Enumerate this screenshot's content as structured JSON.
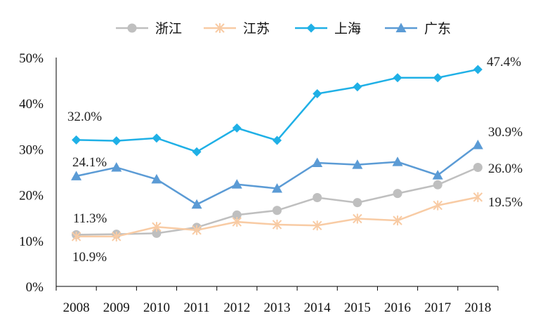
{
  "chart_data": {
    "type": "line",
    "categories": [
      "2008",
      "2009",
      "2010",
      "2011",
      "2012",
      "2013",
      "2014",
      "2015",
      "2016",
      "2017",
      "2018"
    ],
    "ylim": [
      0,
      50
    ],
    "y_ticks": [
      "0%",
      "10%",
      "20%",
      "30%",
      "40%",
      "50%"
    ],
    "grid": false,
    "legend_position": "top",
    "series": [
      {
        "name": "浙江",
        "color": "#bfbfbf",
        "marker": "circle",
        "values": [
          11.3,
          11.4,
          11.6,
          12.9,
          15.6,
          16.6,
          19.4,
          18.3,
          20.3,
          22.2,
          26.0
        ]
      },
      {
        "name": "江苏",
        "color": "#f8cba4",
        "marker": "asterisk",
        "values": [
          10.9,
          10.9,
          13.0,
          12.3,
          14.1,
          13.5,
          13.3,
          14.8,
          14.4,
          17.7,
          19.5
        ]
      },
      {
        "name": "上海",
        "color": "#1fb0e6",
        "marker": "diamond",
        "values": [
          32.0,
          31.8,
          32.4,
          29.4,
          34.6,
          31.9,
          42.1,
          43.6,
          45.6,
          45.6,
          47.4
        ]
      },
      {
        "name": "广东",
        "color": "#5b9bd5",
        "marker": "triangle",
        "values": [
          24.1,
          26.0,
          23.4,
          17.9,
          22.3,
          21.4,
          27.0,
          26.6,
          27.2,
          24.3,
          30.9
        ]
      }
    ],
    "annotations": [
      "47.4%",
      "32.0%",
      "30.9%",
      "24.1%",
      "26.0%",
      "11.3%",
      "19.5%",
      "10.9%"
    ]
  }
}
